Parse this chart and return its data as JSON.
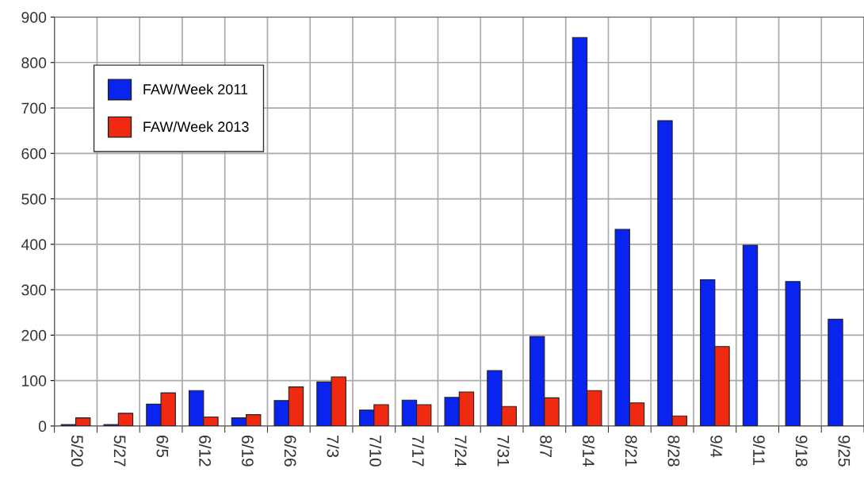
{
  "chart_data": {
    "type": "bar",
    "categories": [
      "5/20",
      "5/27",
      "6/5",
      "6/12",
      "6/19",
      "6/26",
      "7/3",
      "7/10",
      "7/17",
      "7/24",
      "7/31",
      "8/7",
      "8/14",
      "8/21",
      "8/28",
      "9/4",
      "9/11",
      "9/18",
      "9/25"
    ],
    "series": [
      {
        "name": "FAW/Week 2011",
        "color": "#0a24f0",
        "values": [
          3,
          3,
          48,
          78,
          18,
          56,
          97,
          35,
          57,
          63,
          122,
          197,
          855,
          433,
          672,
          322,
          398,
          318,
          235
        ]
      },
      {
        "name": "FAW/Week 2013",
        "color": "#f02a10",
        "values": [
          18,
          28,
          73,
          20,
          25,
          86,
          108,
          47,
          47,
          75,
          43,
          62,
          78,
          51,
          22,
          175,
          null,
          null,
          null
        ]
      }
    ],
    "ylim": [
      0,
      900
    ],
    "yticks": [
      0,
      100,
      200,
      300,
      400,
      500,
      600,
      700,
      800,
      900
    ],
    "grid": true,
    "legend": "top left"
  }
}
